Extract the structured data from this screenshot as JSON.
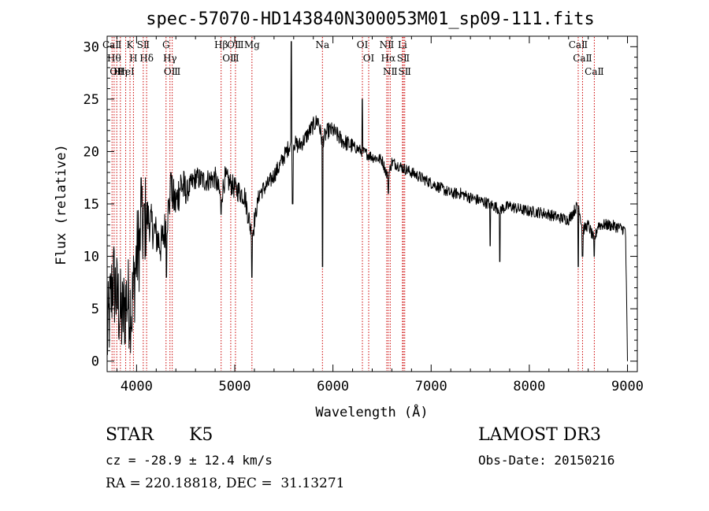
{
  "chart_data": {
    "type": "line",
    "title": "spec-57070-HD143840N300053M01_sp09-111.fits",
    "xlabel": "Wavelength (Å)",
    "ylabel": "Flux (relative)",
    "xlim": [
      3700,
      9100
    ],
    "ylim": [
      -1,
      31
    ],
    "xticks": [
      4000,
      5000,
      6000,
      7000,
      8000,
      9000
    ],
    "yticks": [
      0,
      5,
      10,
      15,
      20,
      25,
      30
    ],
    "line_color": "#000000",
    "marker_color": "#cc0000",
    "anchors": [
      [
        3700,
        2
      ],
      [
        3730,
        5
      ],
      [
        3760,
        8
      ],
      [
        3800,
        6
      ],
      [
        3850,
        4
      ],
      [
        3900,
        6
      ],
      [
        3950,
        5
      ],
      [
        4000,
        10
      ],
      [
        4050,
        12
      ],
      [
        4100,
        14
      ],
      [
        4150,
        13
      ],
      [
        4200,
        12
      ],
      [
        4250,
        11
      ],
      [
        4300,
        13
      ],
      [
        4350,
        16
      ],
      [
        4400,
        15
      ],
      [
        4450,
        17
      ],
      [
        4500,
        16
      ],
      [
        4600,
        17.5
      ],
      [
        4700,
        17.2
      ],
      [
        4800,
        17.5
      ],
      [
        4860,
        15.5
      ],
      [
        4900,
        17.5
      ],
      [
        5000,
        16.5
      ],
      [
        5100,
        15.8
      ],
      [
        5175,
        12
      ],
      [
        5250,
        16
      ],
      [
        5350,
        17
      ],
      [
        5450,
        18.5
      ],
      [
        5500,
        19.5
      ],
      [
        5580,
        21
      ],
      [
        5650,
        20.5
      ],
      [
        5700,
        21
      ],
      [
        5800,
        22.5
      ],
      [
        5850,
        23
      ],
      [
        5890,
        21
      ],
      [
        5950,
        22
      ],
      [
        6000,
        22
      ],
      [
        6100,
        21
      ],
      [
        6200,
        20.5
      ],
      [
        6300,
        20
      ],
      [
        6400,
        19.5
      ],
      [
        6500,
        19.2
      ],
      [
        6560,
        17.5
      ],
      [
        6600,
        19
      ],
      [
        6700,
        18.5
      ],
      [
        6800,
        18
      ],
      [
        6900,
        17.5
      ],
      [
        7000,
        17
      ],
      [
        7100,
        16.5
      ],
      [
        7200,
        16
      ],
      [
        7300,
        16
      ],
      [
        7400,
        15.6
      ],
      [
        7500,
        15.3
      ],
      [
        7600,
        15
      ],
      [
        7700,
        14.5
      ],
      [
        7800,
        14.8
      ],
      [
        7900,
        14.5
      ],
      [
        8000,
        14.3
      ],
      [
        8100,
        14.2
      ],
      [
        8200,
        14
      ],
      [
        8300,
        13.7
      ],
      [
        8400,
        13.5
      ],
      [
        8500,
        15
      ],
      [
        8542,
        12.5
      ],
      [
        8600,
        13
      ],
      [
        8662,
        11.5
      ],
      [
        8700,
        13
      ],
      [
        8800,
        13
      ],
      [
        8900,
        12.8
      ],
      [
        8980,
        12.5
      ],
      [
        9000,
        0
      ]
    ],
    "features": [
      {
        "x": 4045,
        "y": 17.5
      },
      {
        "x": 4075,
        "y": 15
      },
      {
        "x": 4305,
        "y": 8
      },
      {
        "x": 4350,
        "y": 18
      },
      {
        "x": 4860,
        "y": 14
      },
      {
        "x": 5175,
        "y": 8
      },
      {
        "x": 5577,
        "y": 30.5
      },
      {
        "x": 5589,
        "y": 15
      },
      {
        "x": 5895,
        "y": 9
      },
      {
        "x": 6300,
        "y": 25
      },
      {
        "x": 6563,
        "y": 16
      },
      {
        "x": 7600,
        "y": 11
      },
      {
        "x": 7700,
        "y": 9.5
      },
      {
        "x": 8500,
        "y": 9
      },
      {
        "x": 8542,
        "y": 10
      },
      {
        "x": 8662,
        "y": 10
      },
      {
        "x": 9000,
        "y": 3
      }
    ],
    "lines": [
      {
        "x": 3750,
        "label": "CaⅡ"
      },
      {
        "x": 3771,
        "label": "Hθ"
      },
      {
        "x": 3798,
        "label": "OⅡ"
      },
      {
        "x": 3835,
        "label": "Hη"
      },
      {
        "x": 3889,
        "label": "HeⅠ"
      },
      {
        "x": 3933,
        "label": "K"
      },
      {
        "x": 3968,
        "label": "H"
      },
      {
        "x": 4068,
        "label": "SⅡ"
      },
      {
        "x": 4102,
        "label": "Hδ"
      },
      {
        "x": 4300,
        "label": "G"
      },
      {
        "x": 4340,
        "label": "Hγ"
      },
      {
        "x": 4363,
        "label": "OⅢ"
      },
      {
        "x": 4861,
        "label": "Hβ"
      },
      {
        "x": 4959,
        "label": "OⅢ"
      },
      {
        "x": 5007,
        "label": "OⅢ"
      },
      {
        "x": 5175,
        "label": "Mg"
      },
      {
        "x": 5893,
        "label": "Na"
      },
      {
        "x": 6300,
        "label": "OⅠ"
      },
      {
        "x": 6364,
        "label": "OⅠ"
      },
      {
        "x": 6548,
        "label": "NⅡ"
      },
      {
        "x": 6563,
        "label": "Hα"
      },
      {
        "x": 6583,
        "label": "NⅡ"
      },
      {
        "x": 6708,
        "label": "Li"
      },
      {
        "x": 6717,
        "label": "SⅡ"
      },
      {
        "x": 6731,
        "label": "SⅡ"
      },
      {
        "x": 8498,
        "label": "CaⅡ"
      },
      {
        "x": 8542,
        "label": "CaⅡ"
      },
      {
        "x": 8662,
        "label": "CaⅡ"
      }
    ]
  },
  "info": {
    "object_class": "STAR",
    "subclass": "K5",
    "survey": "LAMOST DR3",
    "cz": "cz = -28.9 ± 12.4 km/s",
    "obs_date": "Obs-Date: 20150216",
    "coords": "RA = 220.18818, DEC =  31.13271"
  }
}
